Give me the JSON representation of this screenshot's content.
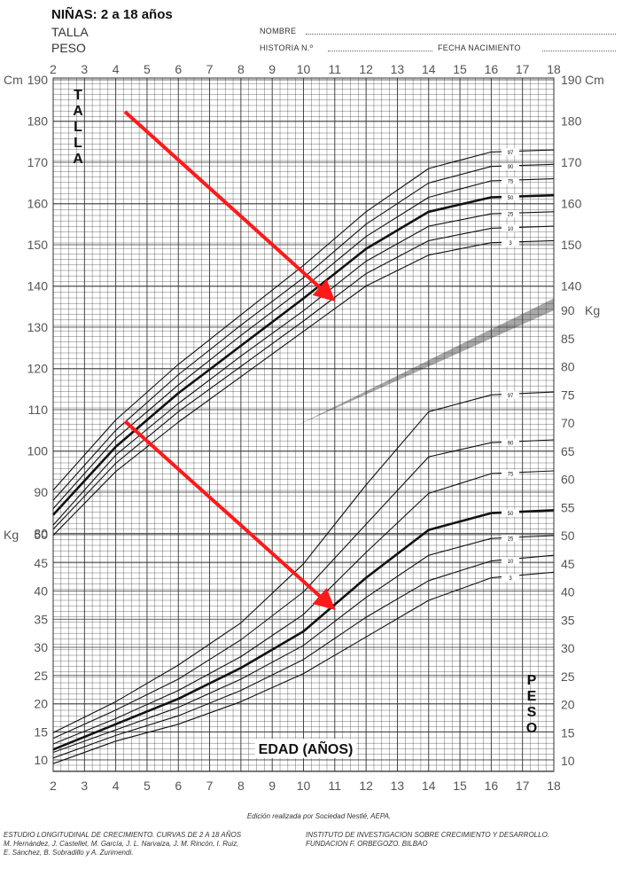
{
  "header": {
    "title": "NIÑAS: 2 a 18 años",
    "line1": "TALLA",
    "line2": "PESO",
    "field_nombre": "NOMBRE",
    "field_historia": "HISTORIA N.º",
    "field_fecha": "FECHA NACIMIENTO"
  },
  "chart_data": [
    {
      "type": "line",
      "title": "TALLA",
      "xlabel": "EDAD (AÑOS)",
      "ylabel": "Cm",
      "xlim": [
        2,
        18
      ],
      "ylim": [
        77,
        190
      ],
      "x_ticks": [
        "2",
        "3",
        "4",
        "5",
        "6",
        "7",
        "8",
        "9",
        "10",
        "11",
        "12",
        "13",
        "14",
        "15",
        "16",
        "17",
        "18"
      ],
      "y_ticks_left": [
        "190",
        "180",
        "170",
        "160",
        "150",
        "140",
        "130",
        "120",
        "110",
        "100",
        "90",
        "80"
      ],
      "y_ticks_right": [
        "190",
        "180",
        "170",
        "160",
        "150",
        "140"
      ],
      "y_unit_left": "Cm",
      "y_unit_right": "Cm",
      "x": [
        2,
        4,
        6,
        8,
        10,
        12,
        14,
        16,
        18
      ],
      "series": [
        {
          "name": "97",
          "values": [
            90.5,
            107.5,
            121,
            133,
            145,
            158,
            168.5,
            172.5,
            173
          ]
        },
        {
          "name": "90",
          "values": [
            88,
            105,
            118.5,
            130.5,
            142,
            155,
            165,
            169,
            169.5
          ]
        },
        {
          "name": "75",
          "values": [
            86,
            103,
            116,
            128,
            139.5,
            152,
            161.5,
            165.5,
            166
          ]
        },
        {
          "name": "50",
          "values": [
            84.5,
            101,
            114,
            125.5,
            137,
            149,
            158,
            161.5,
            162
          ]
        },
        {
          "name": "25",
          "values": [
            82,
            99,
            111.5,
            123,
            134,
            146,
            154.5,
            157.5,
            158
          ]
        },
        {
          "name": "10",
          "values": [
            81,
            97,
            109.5,
            120.5,
            131.5,
            143,
            151,
            154,
            154.5
          ]
        },
        {
          "name": "3",
          "values": [
            79.5,
            95,
            107,
            118,
            129,
            140,
            147.5,
            150.5,
            151
          ]
        }
      ],
      "bold_series": "50"
    },
    {
      "type": "line",
      "title": "PESO",
      "xlabel": "EDAD (AÑOS)",
      "ylabel": "Kg",
      "xlim": [
        2,
        18
      ],
      "ylim": [
        8,
        50
      ],
      "x_ticks": [
        "2",
        "3",
        "4",
        "5",
        "6",
        "7",
        "8",
        "9",
        "10",
        "11",
        "12",
        "13",
        "14",
        "15",
        "16",
        "17",
        "18"
      ],
      "y_ticks_left": [
        "50",
        "45",
        "40",
        "35",
        "30",
        "25",
        "20",
        "15",
        "10"
      ],
      "y_ticks_right": [
        "90",
        "85",
        "80",
        "75",
        "70",
        "65",
        "60",
        "55",
        "50",
        "45",
        "40",
        "35",
        "30",
        "25",
        "20",
        "15",
        "10"
      ],
      "y_unit_left": "Kg",
      "y_unit_right": "Kg",
      "x": [
        2,
        4,
        6,
        8,
        10,
        12,
        14,
        16,
        18
      ],
      "series": [
        {
          "name": "97",
          "values": [
            15,
            20.5,
            27,
            34.5,
            45,
            59,
            72,
            75,
            75.5
          ]
        },
        {
          "name": "90",
          "values": [
            14,
            19,
            24.5,
            31.5,
            40,
            52,
            64,
            66.5,
            67
          ]
        },
        {
          "name": "75",
          "values": [
            13,
            17.5,
            22.5,
            28.5,
            36,
            47,
            57.5,
            61,
            61.5
          ]
        },
        {
          "name": "50",
          "values": [
            12,
            16.5,
            21,
            26.5,
            33,
            42.5,
            51,
            54,
            54.5
          ]
        },
        {
          "name": "25",
          "values": [
            11.5,
            15.5,
            19.5,
            24.5,
            30.5,
            39,
            46.5,
            49.5,
            50
          ]
        },
        {
          "name": "10",
          "values": [
            10.5,
            14.5,
            18,
            22.5,
            28,
            35.5,
            42,
            45.5,
            46.5
          ]
        },
        {
          "name": "3",
          "values": [
            9.5,
            13.5,
            16.5,
            20.5,
            25.5,
            32,
            38.5,
            42.5,
            43.5
          ]
        }
      ],
      "bold_series": "50"
    }
  ],
  "arrows": [
    {
      "color": "#ff1a1a"
    },
    {
      "color": "#ff1a1a"
    }
  ],
  "footer": {
    "center": "Edición realizada por Sociedad Nestlé, AEPA.",
    "left_line1": "ESTUDIO LONGITUDINAL DE CRECIMIENTO. CURVAS DE 2 A 18 AÑOS",
    "left_line2": "M. Hernández, J. Castellet, M. García, J. L. Narvaiza, J. M. Rincón, I. Ruiz,",
    "left_line3": "E. Sánchez, B. Sobradillo y A. Zurimendi.",
    "right_line1": "INSTITUTO DE INVESTIGACION SOBRE CRECIMIENTO Y DESARROLLO.",
    "right_line2": "FUNDACION F. ORBEGOZO. BILBAO"
  },
  "colors": {
    "band": "#a8a8a8",
    "grid": "#333333",
    "arrow": "#ff1a1a"
  }
}
